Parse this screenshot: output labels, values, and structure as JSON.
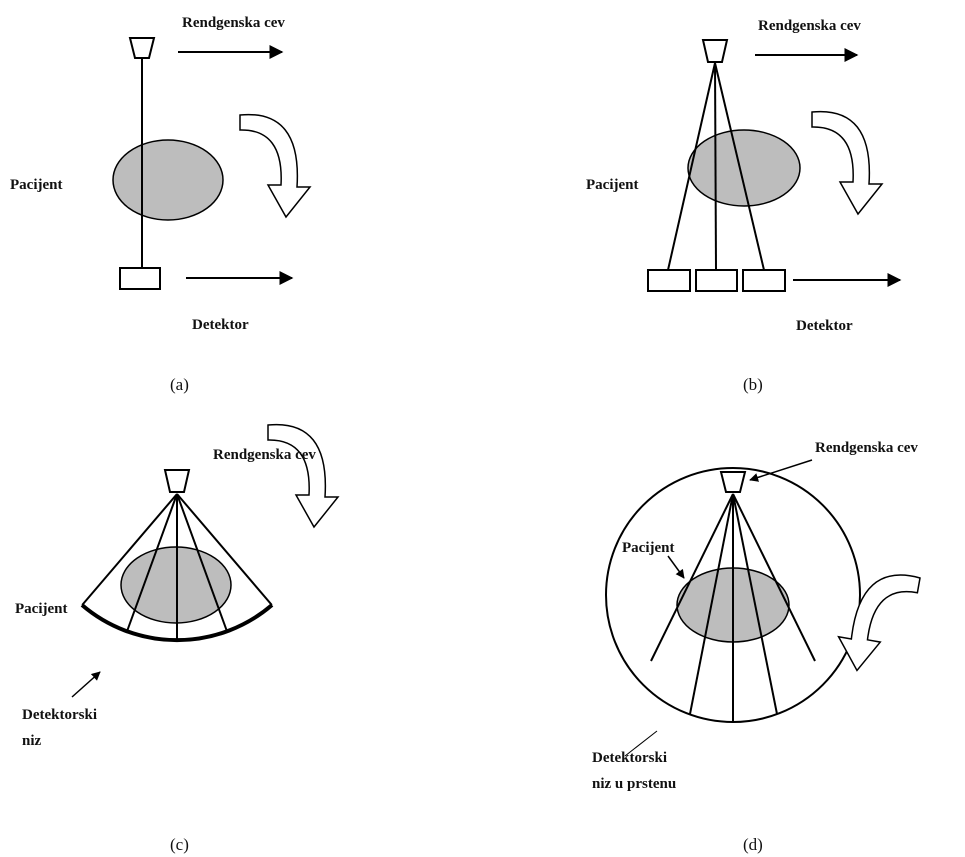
{
  "panels": [
    {
      "tube": "Rendgenska cev",
      "patient": "Pacijent",
      "detector": [
        "Detektor"
      ],
      "caption": "(a)"
    },
    {
      "tube": "Rendgenska cev",
      "patient": "Pacijent",
      "detector": [
        "Detektor"
      ],
      "caption": "(b)"
    },
    {
      "tube": "Rendgenska cev",
      "patient": "Pacijent",
      "detector": [
        "Detektorski",
        "niz"
      ],
      "caption": "(c)"
    },
    {
      "tube": "Rendgenska cev",
      "patient": "Pacijent",
      "detector": [
        "Detektorski",
        "niz u prstenu"
      ],
      "caption": "(d)"
    }
  ]
}
